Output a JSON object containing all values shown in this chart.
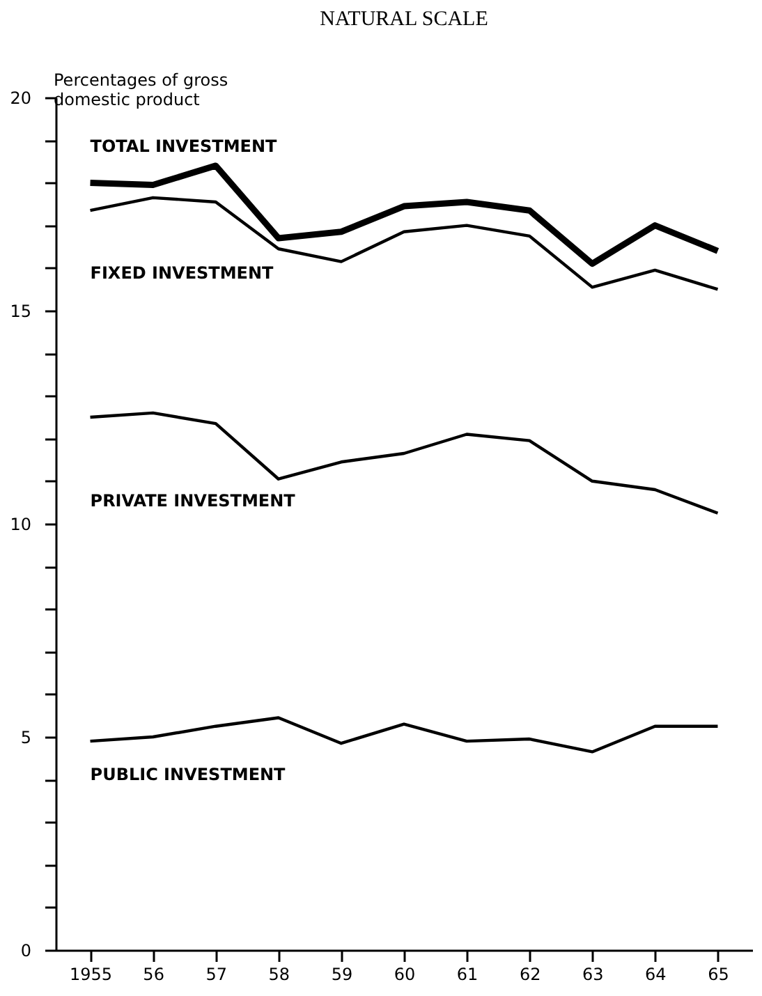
{
  "chart_data": {
    "type": "line",
    "title": "NATURAL SCALE",
    "ylabel": "Percentages of gross domestic product",
    "categories": [
      "1955",
      "56",
      "57",
      "58",
      "59",
      "60",
      "61",
      "62",
      "63",
      "64",
      "65"
    ],
    "series": [
      {
        "name": "TOTAL INVESTMENT",
        "color": "#000000",
        "values": [
          18.0,
          17.95,
          18.4,
          16.7,
          16.85,
          17.45,
          17.55,
          17.35,
          16.1,
          17.0,
          16.4
        ]
      },
      {
        "name": "FIXED INVESTMENT",
        "color": "#000000",
        "values": [
          17.35,
          17.65,
          17.55,
          16.45,
          16.15,
          16.85,
          17.0,
          16.75,
          15.55,
          15.95,
          15.5
        ]
      },
      {
        "name": "PRIVATE INVESTMENT",
        "color": "#000000",
        "values": [
          12.5,
          12.6,
          12.35,
          11.05,
          11.45,
          11.65,
          12.1,
          11.95,
          11.0,
          10.8,
          10.25
        ]
      },
      {
        "name": "PUBLIC INVESTMENT",
        "color": "#000000",
        "values": [
          4.9,
          5.0,
          5.25,
          5.45,
          4.85,
          5.3,
          4.9,
          4.95,
          4.65,
          5.25,
          5.25
        ]
      }
    ],
    "ylim": [
      0,
      20
    ],
    "yticks": [
      0,
      {
        "value": 1,
        "label": null
      },
      {
        "value": 2,
        "label": null
      },
      {
        "value": 3,
        "label": null
      },
      {
        "value": 4,
        "label": null
      },
      5,
      {
        "value": 6,
        "label": null
      },
      {
        "value": 7,
        "label": null
      },
      {
        "value": 8,
        "label": null
      },
      {
        "value": 9,
        "label": null
      },
      10,
      {
        "value": 11,
        "label": null
      },
      {
        "value": 12,
        "label": null
      },
      {
        "value": 13,
        "label": null
      },
      {
        "value": 14,
        "label": null
      },
      15,
      {
        "value": 16,
        "label": null
      },
      {
        "value": 17,
        "label": null
      },
      {
        "value": 18,
        "label": null
      },
      {
        "value": 19,
        "label": null
      },
      20
    ],
    "grid": false,
    "legend": false,
    "marker": "none",
    "line_style": "solid"
  }
}
